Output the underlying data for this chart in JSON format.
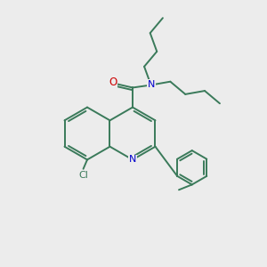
{
  "background_color": "#ececec",
  "bond_color": "#3a7a5a",
  "atom_colors": {
    "N": "#0000cc",
    "O": "#cc0000",
    "Cl": "#3a7a5a"
  },
  "figsize": [
    3.0,
    3.0
  ],
  "dpi": 100,
  "lw": 1.4
}
